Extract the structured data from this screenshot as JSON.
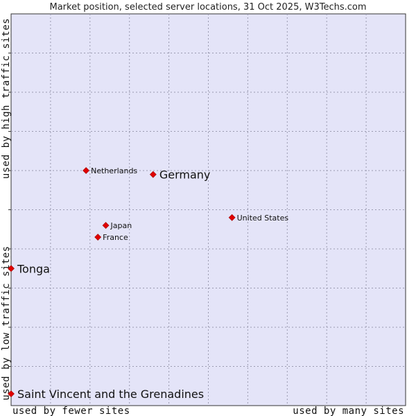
{
  "chart_data": {
    "type": "scatter",
    "title": "Market position, selected server locations, 31 Oct 2025, W3Techs.com",
    "x_label_low": "used by fewer sites",
    "x_label_high": "used by many sites",
    "y_label_low": "used by low traffic sites",
    "y_label_high": "used by high traffic sites",
    "xlim": [
      0,
      10
    ],
    "ylim": [
      0,
      10
    ],
    "grid": true,
    "background_color": "#e4e4f8",
    "point_color": "#e00000",
    "points": [
      {
        "name": "Netherlands",
        "x": 1.9,
        "y": 6.0,
        "emphasis": false
      },
      {
        "name": "Germany",
        "x": 3.6,
        "y": 5.9,
        "emphasis": true
      },
      {
        "name": "United States",
        "x": 5.6,
        "y": 4.8,
        "emphasis": false
      },
      {
        "name": "Japan",
        "x": 2.4,
        "y": 4.6,
        "emphasis": false
      },
      {
        "name": "France",
        "x": 2.2,
        "y": 4.3,
        "emphasis": false
      },
      {
        "name": "Tonga",
        "x": 0.0,
        "y": 3.5,
        "emphasis": true
      },
      {
        "name": "Saint Vincent and the Grenadines",
        "x": 0.0,
        "y": 0.3,
        "emphasis": true
      }
    ]
  }
}
